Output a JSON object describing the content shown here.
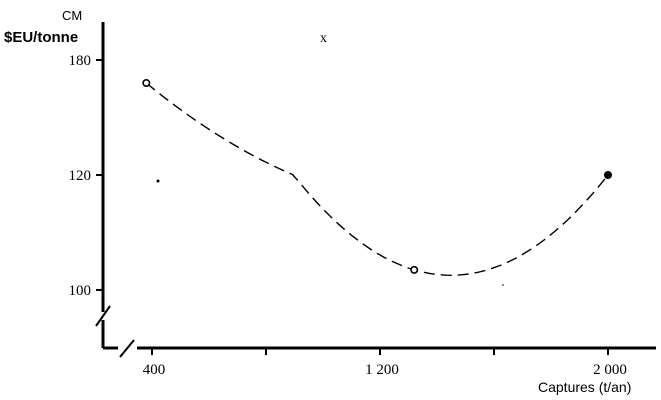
{
  "chart_data": {
    "type": "scatter",
    "ylabel_top": "CM",
    "ylabel": "$EU/tonne",
    "xlabel": "Captures (t/an)",
    "x_ticks": [
      {
        "value": 400,
        "label": "400"
      },
      {
        "value": 800,
        "label": ""
      },
      {
        "value": 1200,
        "label": "1 200"
      },
      {
        "value": 1600,
        "label": ""
      },
      {
        "value": 2000,
        "label": "2 000"
      }
    ],
    "y_ticks": [
      {
        "value": 100,
        "label": "100"
      },
      {
        "value": 120,
        "label": "120"
      },
      {
        "value": 180,
        "label": "180"
      }
    ],
    "y_axis_break": true,
    "x_axis_break": true,
    "points": [
      {
        "x": 380,
        "y": 168,
        "style": "open"
      },
      {
        "x": 1320,
        "y": 103.5,
        "style": "open"
      },
      {
        "x": 2000,
        "y": 120,
        "style": "filled"
      }
    ],
    "curve": {
      "style": "dashed",
      "through": "points"
    },
    "annotation": {
      "text": "x"
    }
  }
}
